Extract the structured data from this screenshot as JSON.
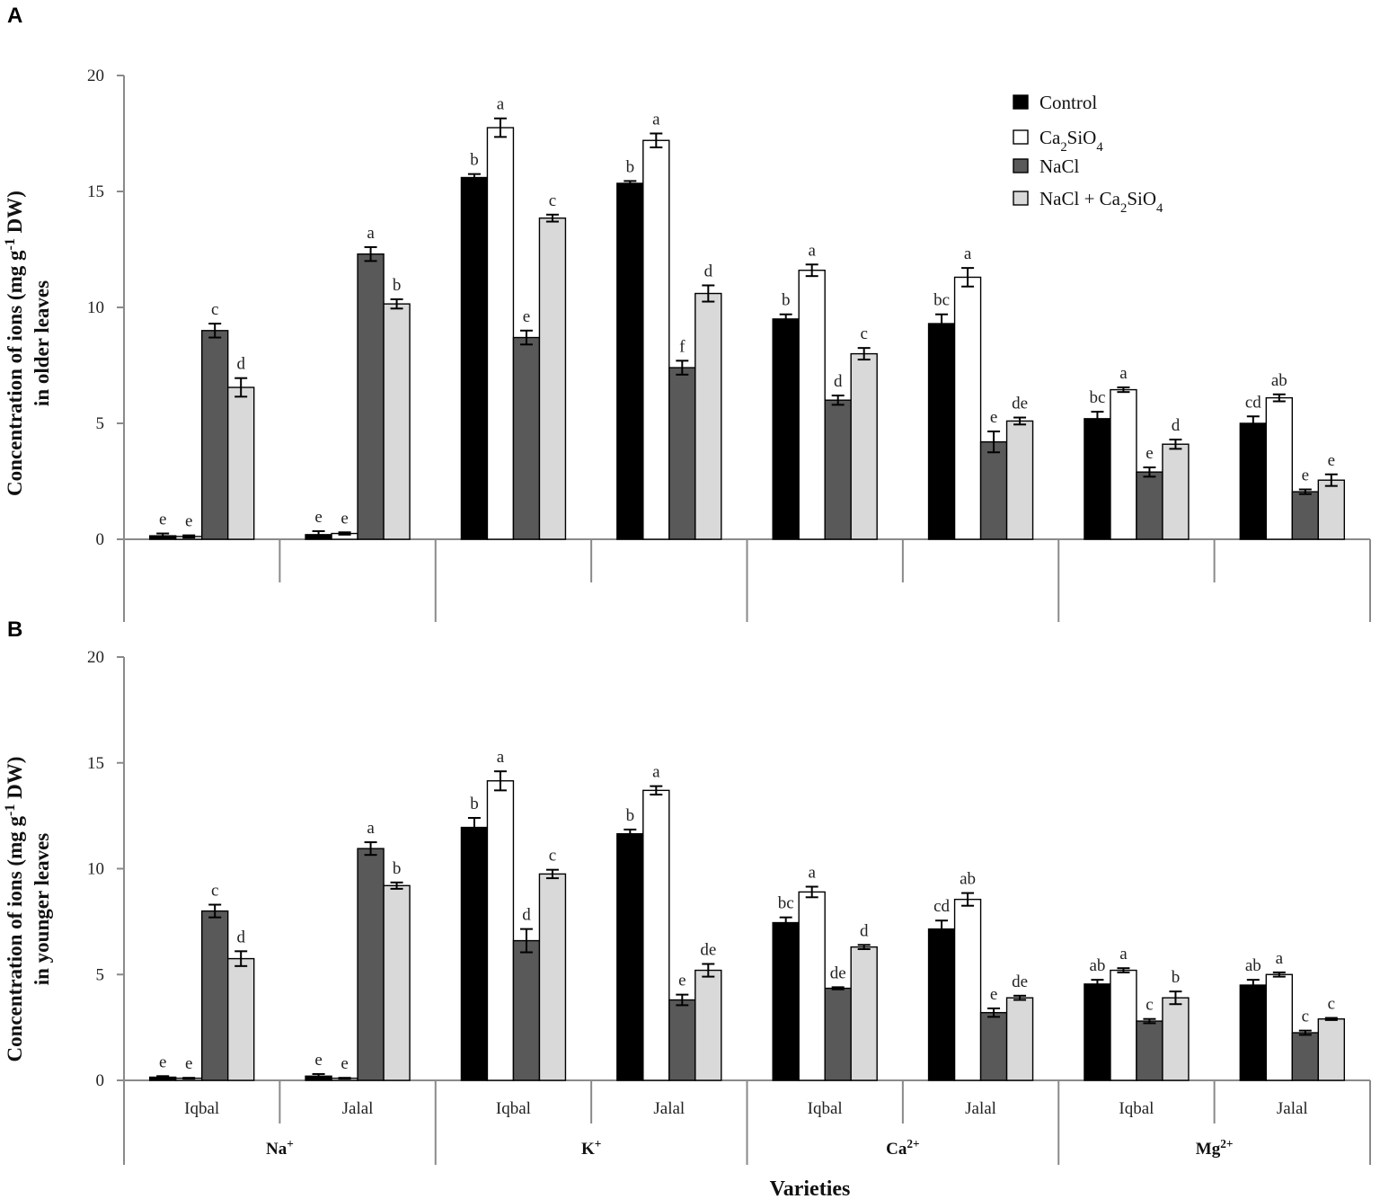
{
  "chart_data": {
    "type": "bar",
    "legend": {
      "position": "top-right",
      "entries": [
        {
          "name": "Control",
          "color": "#000000"
        },
        {
          "name": "Ca2SiO4",
          "color": "#ffffff"
        },
        {
          "name": "NaCl",
          "color": "#595959"
        },
        {
          "name": "NaCl + Ca2SiO4",
          "color": "#d9d9d9"
        }
      ]
    },
    "xlabel": "Varieties",
    "groups": [
      "Na+",
      "K+",
      "Ca2+",
      "Mg2+"
    ],
    "varieties": [
      "Iqbal",
      "Jalal"
    ],
    "panels": [
      {
        "letter": "A",
        "ylabel_line1": "Concentration of ions (mg g-1 DW)",
        "ylabel_line2": "in older leaves",
        "ylim": [
          0,
          20
        ],
        "yticks": [
          0,
          5,
          10,
          15,
          20
        ],
        "show_category_labels": false,
        "clusters": [
          {
            "values": [
              0.15,
              0.12,
              9.0,
              6.55
            ],
            "errors": [
              0.1,
              0.05,
              0.3,
              0.4
            ],
            "letters": [
              "e",
              "e",
              "c",
              "d"
            ]
          },
          {
            "values": [
              0.2,
              0.25,
              12.3,
              10.15
            ],
            "errors": [
              0.15,
              0.05,
              0.3,
              0.2
            ],
            "letters": [
              "e",
              "e",
              "a",
              "b"
            ]
          },
          {
            "values": [
              15.6,
              17.75,
              8.7,
              13.85
            ],
            "errors": [
              0.15,
              0.4,
              0.3,
              0.15
            ],
            "letters": [
              "b",
              "a",
              "e",
              "c"
            ]
          },
          {
            "values": [
              15.35,
              17.2,
              7.4,
              10.6
            ],
            "errors": [
              0.1,
              0.3,
              0.3,
              0.35
            ],
            "letters": [
              "b",
              "a",
              "f",
              "d"
            ]
          },
          {
            "values": [
              9.5,
              11.6,
              6.0,
              8.0
            ],
            "errors": [
              0.2,
              0.25,
              0.2,
              0.25
            ],
            "letters": [
              "b",
              "a",
              "d",
              "c"
            ]
          },
          {
            "values": [
              9.3,
              11.3,
              4.2,
              5.1
            ],
            "errors": [
              0.4,
              0.4,
              0.45,
              0.15
            ],
            "letters": [
              "bc",
              "a",
              "e",
              "de"
            ]
          },
          {
            "values": [
              5.2,
              6.45,
              2.9,
              4.1
            ],
            "errors": [
              0.3,
              0.1,
              0.2,
              0.2
            ],
            "letters": [
              "bc",
              "a",
              "e",
              "d"
            ]
          },
          {
            "values": [
              5.0,
              6.1,
              2.05,
              2.55
            ],
            "errors": [
              0.3,
              0.15,
              0.1,
              0.25
            ],
            "letters": [
              "cd",
              "ab",
              "e",
              "e"
            ]
          }
        ]
      },
      {
        "letter": "B",
        "ylabel_line1": "Concentration of ions (mg g-1 DW)",
        "ylabel_line2": "in younger leaves",
        "ylim": [
          0,
          20
        ],
        "yticks": [
          0,
          5,
          10,
          15,
          20
        ],
        "show_category_labels": true,
        "clusters": [
          {
            "values": [
              0.15,
              0.1,
              8.0,
              5.75
            ],
            "errors": [
              0.05,
              0.02,
              0.3,
              0.35
            ],
            "letters": [
              "e",
              "e",
              "c",
              "d"
            ]
          },
          {
            "values": [
              0.2,
              0.1,
              10.95,
              9.2
            ],
            "errors": [
              0.1,
              0.02,
              0.3,
              0.15
            ],
            "letters": [
              "e",
              "e",
              "a",
              "b"
            ]
          },
          {
            "values": [
              11.95,
              14.15,
              6.6,
              9.75
            ],
            "errors": [
              0.45,
              0.45,
              0.55,
              0.2
            ],
            "letters": [
              "b",
              "a",
              "d",
              "c"
            ]
          },
          {
            "values": [
              11.65,
              13.7,
              3.8,
              5.2
            ],
            "errors": [
              0.2,
              0.2,
              0.25,
              0.3
            ],
            "letters": [
              "b",
              "a",
              "e",
              "de"
            ]
          },
          {
            "values": [
              7.45,
              8.9,
              4.35,
              6.3
            ],
            "errors": [
              0.25,
              0.25,
              0.05,
              0.1
            ],
            "letters": [
              "bc",
              "a",
              "de",
              "d"
            ]
          },
          {
            "values": [
              7.15,
              8.55,
              3.2,
              3.9
            ],
            "errors": [
              0.4,
              0.3,
              0.2,
              0.1
            ],
            "letters": [
              "cd",
              "ab",
              "e",
              "de"
            ]
          },
          {
            "values": [
              4.55,
              5.2,
              2.8,
              3.9
            ],
            "errors": [
              0.2,
              0.1,
              0.1,
              0.3
            ],
            "letters": [
              "ab",
              "a",
              "c",
              "b"
            ]
          },
          {
            "values": [
              4.5,
              5.0,
              2.25,
              2.9
            ],
            "errors": [
              0.25,
              0.1,
              0.1,
              0.05
            ],
            "letters": [
              "ab",
              "a",
              "c",
              "c"
            ]
          }
        ]
      }
    ]
  }
}
